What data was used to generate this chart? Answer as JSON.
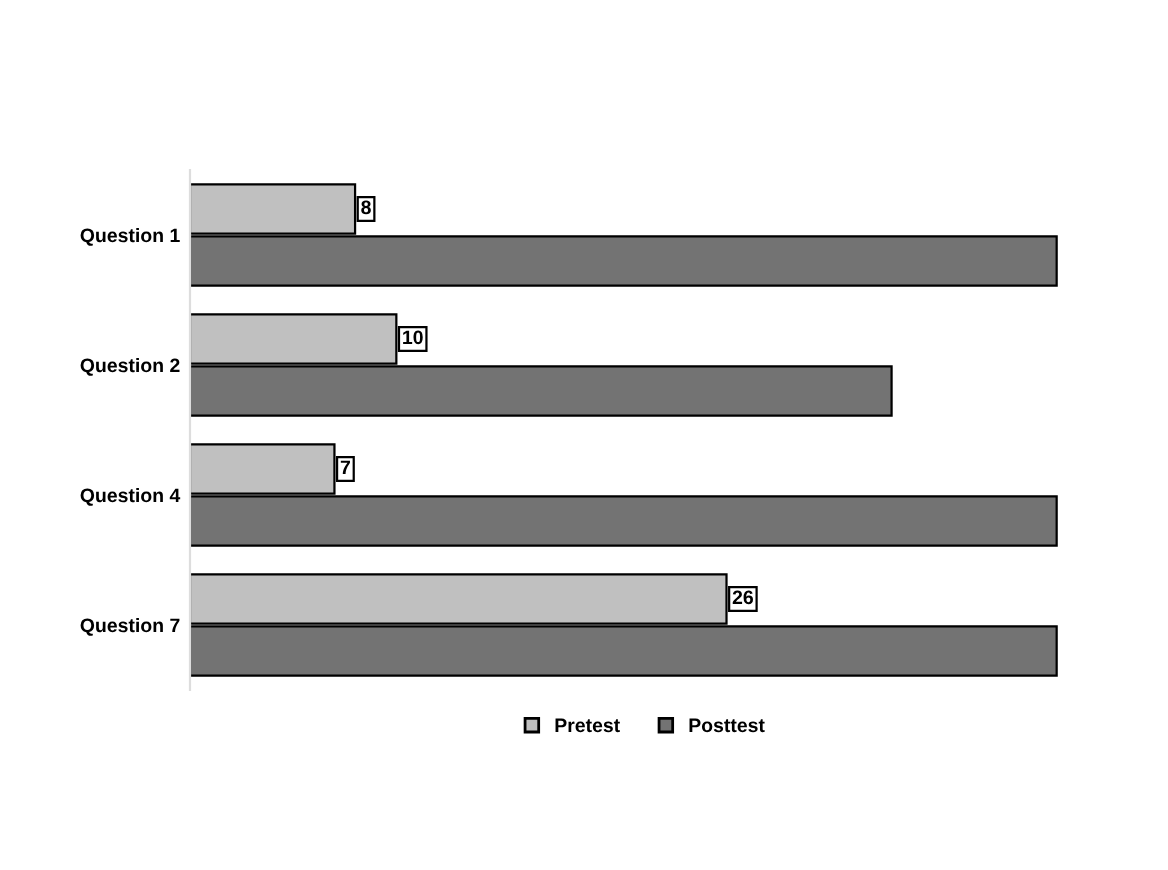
{
  "chart_data": {
    "type": "bar",
    "orientation": "horizontal",
    "categories": [
      "Question 1",
      "Question 2",
      "Question 4",
      "Question 7"
    ],
    "series": [
      {
        "name": "Pretest",
        "color": "#c0c0c0",
        "values": [
          8,
          10,
          7,
          26
        ],
        "value_labels": [
          "8",
          "10",
          "7",
          "26"
        ]
      },
      {
        "name": "Posttest",
        "color": "#737373",
        "values": [
          42,
          34,
          42,
          42
        ]
      }
    ],
    "legend": "bottom",
    "grid": false
  }
}
